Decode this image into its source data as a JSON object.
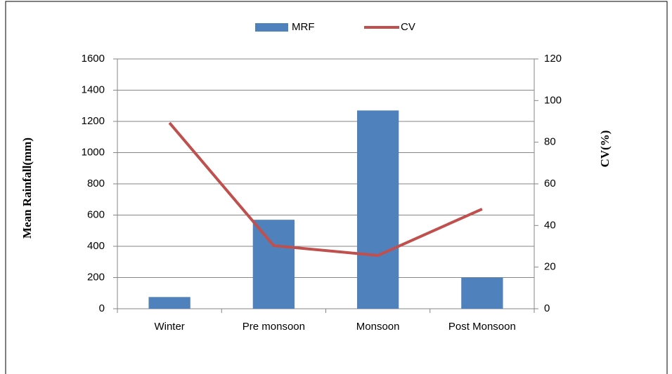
{
  "chart_data": {
    "type": "bar",
    "y_label": "Mean Rainfall(mm)",
    "y2_label": "CV(%)",
    "categories": [
      "Winter",
      "Pre monsoon",
      "Monsoon",
      "Post Monsoon"
    ],
    "series": [
      {
        "name": "MRF",
        "color": "#4f81bd",
        "type": "bar",
        "values": [
          75,
          570,
          1270,
          200
        ]
      },
      {
        "name": "CV",
        "color": "#c0504d",
        "type": "line",
        "axis": "y2",
        "values": [
          89.3,
          30.3,
          25.6,
          47.9
        ]
      }
    ],
    "ylim": [
      0,
      1600
    ],
    "yticks": [
      0,
      200,
      400,
      600,
      800,
      1000,
      1200,
      1400,
      1600
    ],
    "y2lim": [
      0,
      120
    ],
    "y2ticks": [
      0,
      20,
      40,
      60,
      80,
      100,
      120
    ],
    "grid": true,
    "legend": "top"
  }
}
